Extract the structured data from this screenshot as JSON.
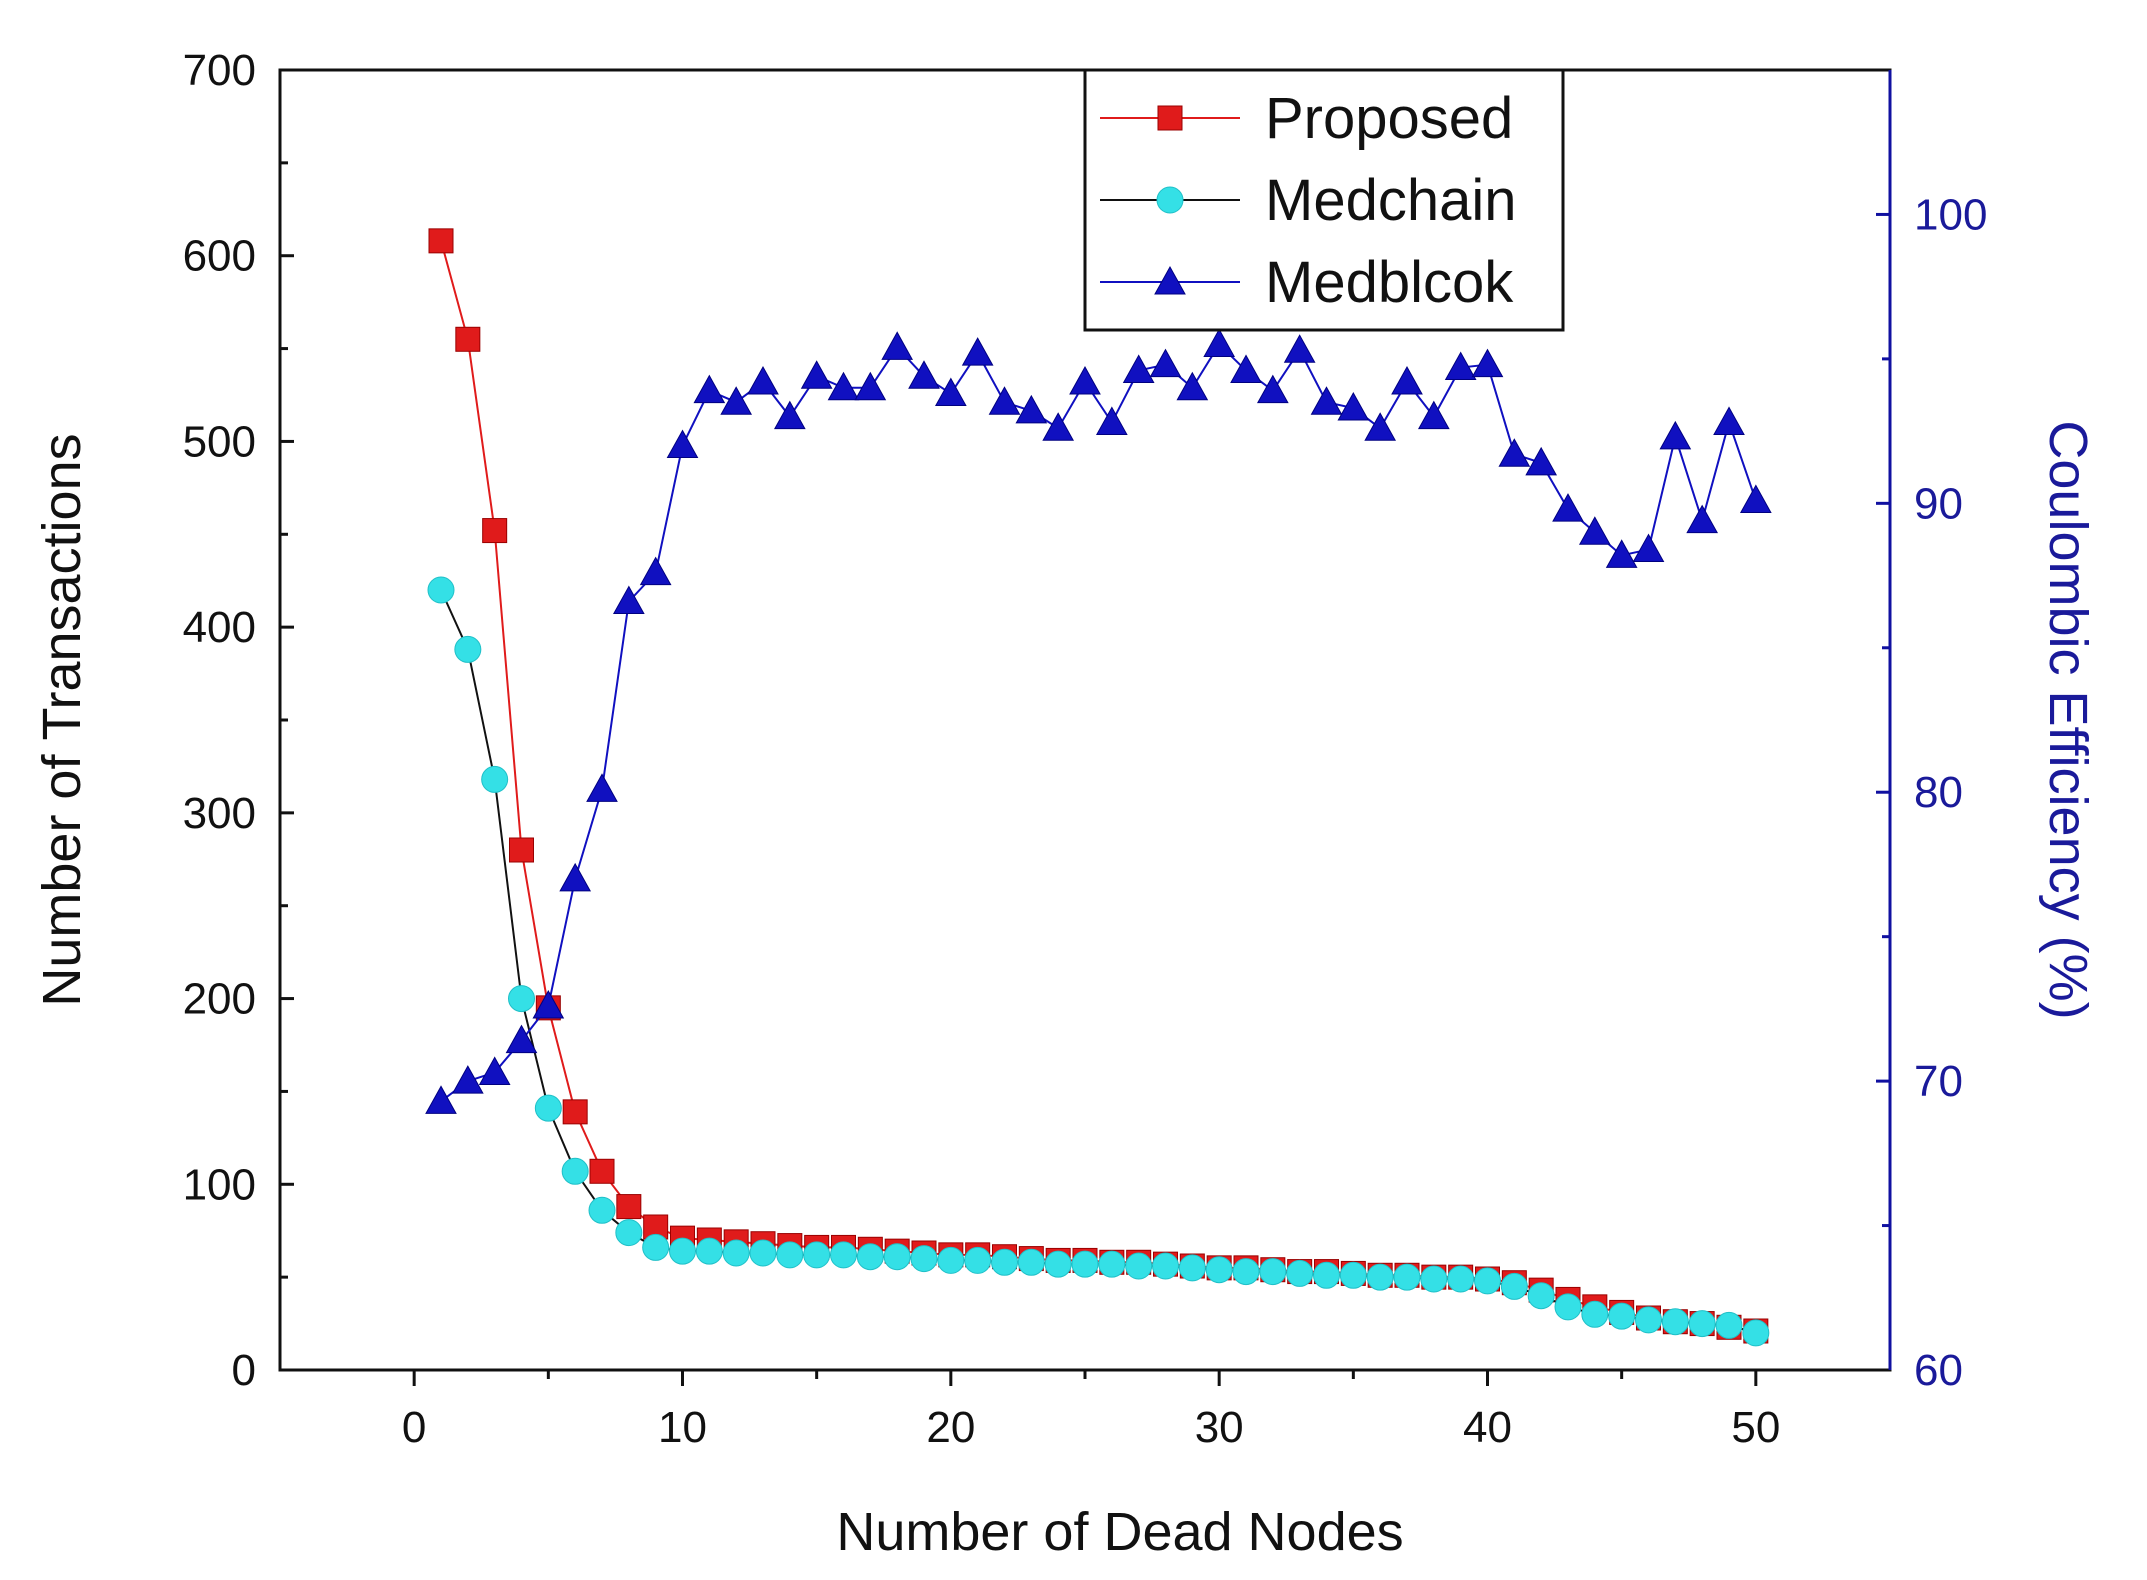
{
  "chart_data": {
    "type": "line",
    "title": "",
    "xlabel": "Number of Dead Nodes",
    "ylabel": "Number of Transactions",
    "y2label": "Coulombic Efficiency (%)",
    "xlim": [
      -5,
      55
    ],
    "ylim": [
      0,
      700
    ],
    "y2lim": [
      60,
      105
    ],
    "xticks": [
      0,
      10,
      20,
      30,
      40,
      50
    ],
    "yticks": [
      0,
      100,
      200,
      300,
      400,
      500,
      600,
      700
    ],
    "y2ticks": [
      60,
      70,
      80,
      90,
      100
    ],
    "legend_position": "top-right",
    "x": [
      1,
      2,
      3,
      4,
      5,
      6,
      7,
      8,
      9,
      10,
      11,
      12,
      13,
      14,
      15,
      16,
      17,
      18,
      19,
      20,
      21,
      22,
      23,
      24,
      25,
      26,
      27,
      28,
      29,
      30,
      31,
      32,
      33,
      34,
      35,
      36,
      37,
      38,
      39,
      40,
      41,
      42,
      43,
      44,
      45,
      46,
      47,
      48,
      49,
      50
    ],
    "series": [
      {
        "name": "Proposed",
        "axis": "left",
        "color": "#e01b1b",
        "marker": "square",
        "values": [
          608,
          555,
          452,
          280,
          195,
          139,
          107,
          88,
          77,
          71,
          70,
          69,
          68,
          67,
          66,
          66,
          65,
          64,
          63,
          62,
          62,
          61,
          60,
          59,
          59,
          58,
          58,
          57,
          56,
          55,
          55,
          54,
          53,
          53,
          52,
          51,
          51,
          50,
          50,
          49,
          47,
          43,
          38,
          34,
          31,
          28,
          26,
          25,
          23,
          21
        ]
      },
      {
        "name": "Medchain",
        "axis": "left",
        "color": "#34e0e6",
        "marker": "circle",
        "values": [
          420,
          388,
          318,
          200,
          141,
          107,
          86,
          74,
          66,
          64,
          64,
          63,
          63,
          62,
          62,
          62,
          61,
          61,
          60,
          59,
          59,
          58,
          58,
          57,
          57,
          57,
          56,
          56,
          55,
          54,
          53,
          53,
          52,
          51,
          51,
          50,
          50,
          49,
          49,
          48,
          45,
          40,
          34,
          30,
          29,
          27,
          26,
          25,
          24,
          20
        ]
      },
      {
        "name": "Medblcok",
        "axis": "right",
        "color": "#1010c0",
        "marker": "triangle",
        "values": [
          69.3,
          70.0,
          70.3,
          71.4,
          72.6,
          77.0,
          80.1,
          86.6,
          87.6,
          92.0,
          93.9,
          93.5,
          94.2,
          93.0,
          94.4,
          94.0,
          94.0,
          95.4,
          94.4,
          93.8,
          95.2,
          93.5,
          93.2,
          92.6,
          94.2,
          92.8,
          94.6,
          94.8,
          94.0,
          95.5,
          94.6,
          93.9,
          95.3,
          93.5,
          93.3,
          92.6,
          94.2,
          93.0,
          94.7,
          94.8,
          91.7,
          91.4,
          89.8,
          89.0,
          88.2,
          88.4,
          92.3,
          89.4,
          92.8,
          90.1
        ]
      }
    ]
  }
}
